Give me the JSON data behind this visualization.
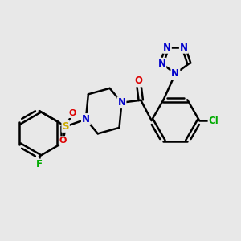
{
  "bg_color": "#e8e8e8",
  "bond_color": "#000000",
  "bond_width": 1.8,
  "atom_colors": {
    "N": "#0000cc",
    "O": "#dd0000",
    "S": "#ccaa00",
    "F": "#00aa00",
    "Cl": "#00aa00",
    "C": "#000000"
  },
  "font_size": 8.5,
  "fig_size": [
    3.0,
    3.0
  ],
  "dpi": 100
}
